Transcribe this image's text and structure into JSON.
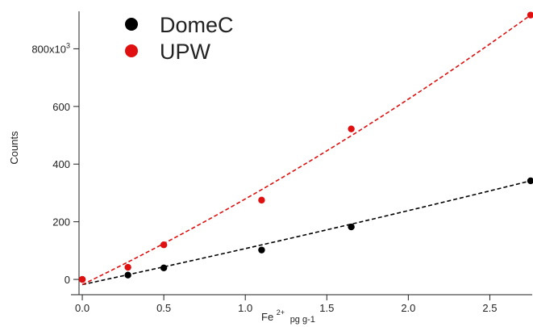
{
  "chart_data": {
    "type": "scatter",
    "title": "",
    "xlabel": "Fe",
    "xlabel_superscript": "2+",
    "xlabel_subscript": "pg g-1",
    "ylabel": "Counts",
    "xlim": [
      -0.02,
      2.75
    ],
    "ylim": [
      -25000,
      930000
    ],
    "x_ticks": [
      0.0,
      0.5,
      1.0,
      1.5,
      2.0,
      2.5
    ],
    "x_tick_labels": [
      "0.0",
      "0.5",
      "1.0",
      "1.5",
      "2.0",
      "2.5"
    ],
    "y_ticks": [
      0,
      200000,
      400000,
      600000,
      800000
    ],
    "y_tick_labels": [
      "0",
      "200",
      "400",
      "600",
      "800x10"
    ],
    "y_top_label_superscript": "3",
    "grid": false,
    "legend_position": "top-left",
    "series": [
      {
        "name": "DomeC",
        "color": "#000000",
        "x": [
          0.0,
          0.28,
          0.5,
          1.1,
          1.65,
          2.75
        ],
        "y": [
          0,
          15000,
          40000,
          102000,
          182000,
          342000
        ],
        "fit": {
          "style": "dashed",
          "x0": 0.0,
          "x1": 2.75,
          "y0": -18000,
          "y1": 342000,
          "curve": 0.012
        }
      },
      {
        "name": "UPW",
        "color": "#e01010",
        "x": [
          0.0,
          0.28,
          0.5,
          1.1,
          1.65,
          2.75
        ],
        "y": [
          0,
          42000,
          120000,
          275000,
          522000,
          917000
        ],
        "fit": {
          "style": "dashed",
          "x0": 0.0,
          "x1": 2.75,
          "y0": -18000,
          "y1": 917000,
          "curve": 0.033
        }
      }
    ]
  }
}
